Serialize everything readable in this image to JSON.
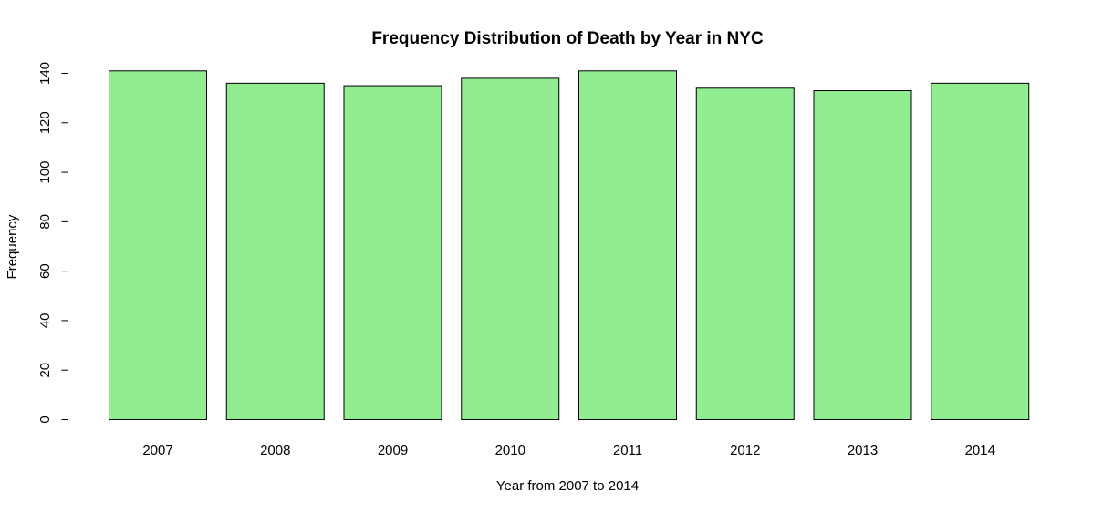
{
  "chart_data": {
    "type": "bar",
    "title": "Frequency Distribution of Death by Year in NYC",
    "xlabel": "Year from 2007 to 2014",
    "ylabel": "Frequency",
    "categories": [
      "2007",
      "2008",
      "2009",
      "2010",
      "2011",
      "2012",
      "2013",
      "2014"
    ],
    "values": [
      141,
      136,
      135,
      138,
      141,
      134,
      133,
      136
    ],
    "ylim": [
      0,
      140
    ],
    "yticks": [
      0,
      20,
      40,
      60,
      80,
      100,
      120,
      140
    ],
    "ytick_labels": [
      "0",
      "20",
      "40",
      "60",
      "80",
      "100",
      "120",
      "140"
    ],
    "bar_color": "#90EE90",
    "bar_border_color": "#000000",
    "grid": false,
    "legend": "none"
  }
}
